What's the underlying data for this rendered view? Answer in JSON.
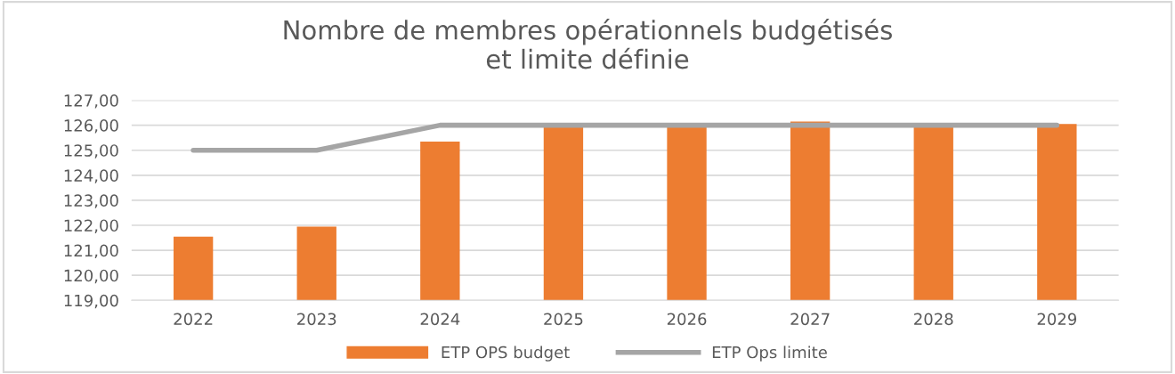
{
  "chart_data": {
    "type": "bar",
    "title": "Nombre de membres opérationnels budgétisés\net limite définie",
    "categories": [
      "2022",
      "2023",
      "2024",
      "2025",
      "2026",
      "2027",
      "2028",
      "2029"
    ],
    "series": [
      {
        "name": "ETP OPS budget",
        "color": "#ed7d31",
        "values": [
          121.55,
          121.95,
          125.35,
          125.95,
          125.95,
          126.15,
          125.95,
          126.05
        ]
      },
      {
        "name": "ETP Ops limite",
        "type": "line",
        "color": "#a5a5a5",
        "values": [
          125,
          125,
          126,
          126,
          126,
          126,
          126,
          126
        ]
      }
    ],
    "ylim": [
      119,
      127
    ],
    "yticks": [
      {
        "value": 119,
        "label": "119,00"
      },
      {
        "value": 120,
        "label": "120,00"
      },
      {
        "value": 121,
        "label": "121,00"
      },
      {
        "value": 122,
        "label": "122,00"
      },
      {
        "value": 123,
        "label": "123,00"
      },
      {
        "value": 124,
        "label": "124,00"
      },
      {
        "value": 125,
        "label": "125,00"
      },
      {
        "value": 126,
        "label": "126,00"
      },
      {
        "value": 127,
        "label": "127,00"
      }
    ],
    "grid": "y",
    "legend": "bottom",
    "marker": "none",
    "line_style": "solid"
  }
}
